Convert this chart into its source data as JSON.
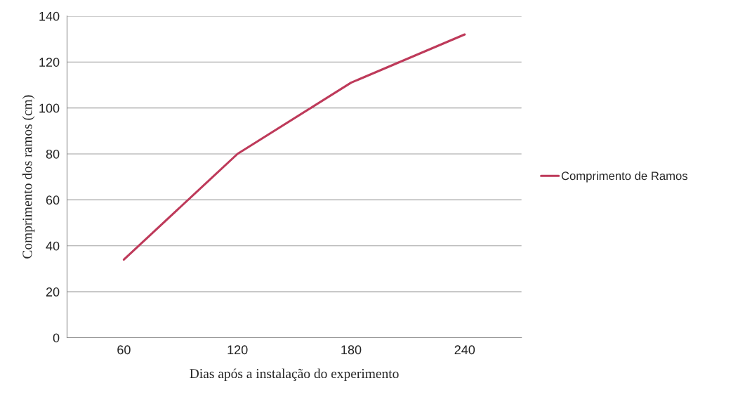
{
  "chart_data": {
    "type": "line",
    "xlabel": "Dias após a instalação do experimento",
    "ylabel": "Comprimento dos ramos (cm)",
    "categories": [
      "60",
      "120",
      "180",
      "240"
    ],
    "series": [
      {
        "name": "Comprimento de Ramos",
        "color": "#be3a5a",
        "values": [
          34,
          80,
          111,
          132
        ]
      }
    ],
    "ylim": [
      0,
      140
    ],
    "yticks": [
      0,
      20,
      40,
      60,
      80,
      100,
      120,
      140
    ],
    "grid": "y",
    "legend": "right",
    "marker": "none",
    "line_style": "solid"
  }
}
